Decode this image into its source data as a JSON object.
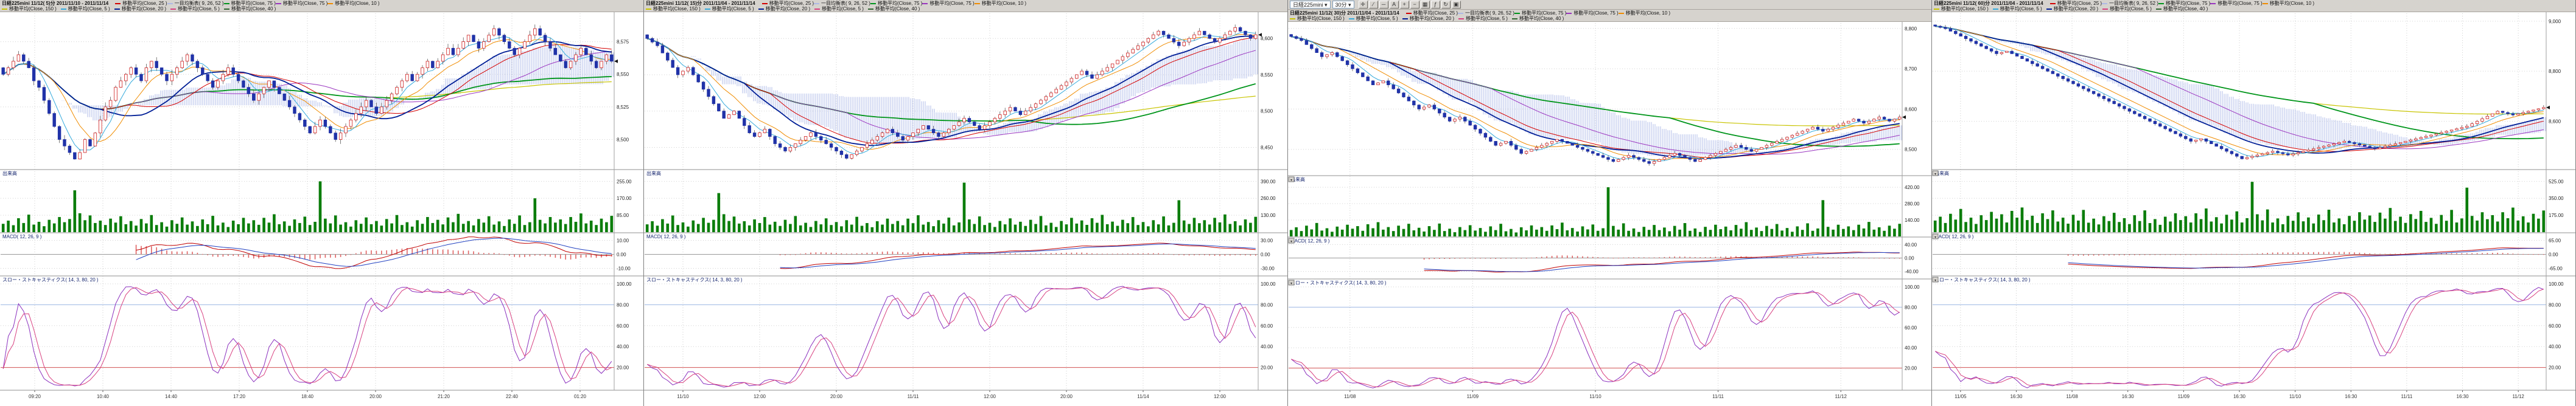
{
  "panels": [
    {
      "title": "日経225mini 11/12(  5)分  2011/11/10 - 2011/11/14"
    },
    {
      "title": "日経225mini 11/12( 15)分  2011/11/04 - 2011/11/14"
    },
    {
      "title": "日経225mini 11/12( 30)分  2011/11/04 - 2011/11/14"
    },
    {
      "title": "日経225mini 11/12( 60)分  2011/11/04 - 2011/11/14"
    }
  ],
  "legend": {
    "row1": [
      {
        "label": "移動平均(Close, 25 )",
        "color": "#d40000"
      },
      {
        "label": "一目均衡表( 9, 26, 52 )",
        "color": "#aeb9e6"
      },
      {
        "label": "移動平均(Close, 75 )",
        "color": "#00951b"
      },
      {
        "label": "移動平均(Close, 75 )",
        "color": "#9a35c0"
      },
      {
        "label": "移動平均(Close, 10 )",
        "color": "#f08c00"
      }
    ],
    "row2": [
      {
        "label": "移動平均(Close, 150 )",
        "color": "#c8c400"
      },
      {
        "label": "移動平均(Close, 5 )",
        "color": "#35aadc"
      },
      {
        "label": "移動平均(Close, 20 )",
        "color": "#001e96"
      },
      {
        "label": "移動平均(Close, 5 )",
        "color": "#d84080"
      },
      {
        "label": "移動平均(Close, 40 )",
        "color": "#336633"
      }
    ]
  },
  "sections": {
    "volume": "出来高",
    "macd": "MACD( 12, 26, 9 )",
    "stoch": "スロー・ストキャスティクス( 14, 3, 80, 20 )"
  },
  "toolbar": {
    "symbol": "日経225mini ▾",
    "timeframe": "30分 ▾",
    "buttons": [
      {
        "name": "crosshair-tool-button",
        "glyph": "✛"
      },
      {
        "name": "trendline-tool-button",
        "glyph": "∕"
      },
      {
        "name": "horizontal-line-tool-button",
        "glyph": "─"
      },
      {
        "name": "text-annotation-button",
        "glyph": "A"
      },
      {
        "name": "zoom-in-button",
        "glyph": "+"
      },
      {
        "name": "zoom-out-button",
        "glyph": "−"
      },
      {
        "name": "grid-toggle-button",
        "glyph": "▦"
      },
      {
        "name": "indicator-settings-button",
        "glyph": "ƒ"
      },
      {
        "name": "refresh-button",
        "glyph": "↻"
      },
      {
        "name": "save-layout-button",
        "glyph": "▣"
      }
    ]
  },
  "chart_data": [
    {
      "type": "candlestick",
      "name": "nikkei225mini-5min",
      "title": "日経225mini 11/12(  5)分  2011/11/10 - 2011/11/14",
      "timeframe": "5分",
      "date_range": "2011/11/10 - 2011/11/14",
      "ylim": [
        8470,
        8600
      ],
      "xlabels": [
        "09:20",
        "10:40",
        "14:40",
        "17:20",
        "18:40",
        "20:00",
        "21:20",
        "22:40",
        "01:20"
      ],
      "indicators": {
        "moving_averages": [
          5,
          10,
          20,
          25,
          40,
          75,
          150
        ],
        "ichimoku": [
          9,
          26,
          52
        ],
        "macd": [
          12,
          26,
          9
        ],
        "slow_stochastics": [
          14,
          3
        ]
      },
      "section_buttons": false,
      "closes": [
        8550,
        8555,
        8560,
        8565,
        8560,
        8555,
        8545,
        8540,
        8530,
        8520,
        8510,
        8500,
        8495,
        8490,
        8485,
        8490,
        8500,
        8495,
        8505,
        8515,
        8525,
        8530,
        8540,
        8545,
        8550,
        8555,
        8550,
        8545,
        8555,
        8560,
        8555,
        8550,
        8545,
        8550,
        8555,
        8560,
        8565,
        8560,
        8555,
        8550,
        8545,
        8540,
        8545,
        8550,
        8555,
        8550,
        8545,
        8540,
        8535,
        8530,
        8535,
        8540,
        8545,
        8540,
        8535,
        8530,
        8525,
        8520,
        8515,
        8510,
        8505,
        8510,
        8515,
        8510,
        8505,
        8500,
        8505,
        8510,
        8515,
        8520,
        8525,
        8530,
        8525,
        8520,
        8525,
        8530,
        8535,
        8540,
        8545,
        8550,
        8545,
        8550,
        8555,
        8560,
        8555,
        8560,
        8565,
        8570,
        8565,
        8570,
        8575,
        8580,
        8575,
        8570,
        8575,
        8580,
        8585,
        8580,
        8575,
        8570,
        8565,
        8570,
        8575,
        8580,
        8585,
        8580,
        8575,
        8570,
        8565,
        8560,
        8555,
        8560,
        8565,
        8570,
        8565,
        8560,
        8555,
        8560,
        8565,
        8560
      ],
      "volumes": [
        42,
        58,
        35,
        70,
        46,
        88,
        38,
        52,
        30,
        62,
        44,
        76,
        50,
        66,
        210,
        95,
        60,
        84,
        46,
        58,
        36,
        68,
        48,
        80,
        40,
        56,
        33,
        66,
        44,
        86,
        36,
        50,
        28,
        60,
        42,
        74,
        38,
        54,
        31,
        64,
        40,
        82,
        34,
        48,
        26,
        58,
        40,
        72,
        44,
        60,
        37,
        72,
        48,
        90,
        40,
        54,
        32,
        64,
        46,
        78,
        36,
        52,
        255,
        68,
        44,
        84,
        38,
        50,
        28,
        60,
        42,
        74,
        40,
        56,
        33,
        66,
        44,
        86,
        36,
        50,
        28,
        60,
        42,
        76,
        46,
        62,
        39,
        74,
        50,
        92,
        42,
        56,
        34,
        66,
        48,
        80,
        38,
        54,
        31,
        64,
        42,
        84,
        36,
        50,
        170,
        62,
        44,
        76,
        48,
        64,
        41,
        76,
        52,
        94,
        44,
        58,
        36,
        68,
        50,
        82
      ]
    },
    {
      "type": "candlestick",
      "name": "nikkei225mini-15min",
      "title": "日経225mini 11/12( 15)分  2011/11/04 - 2011/11/14",
      "timeframe": "15分",
      "date_range": "2011/11/04 - 2011/11/14",
      "ylim": [
        8425,
        8630
      ],
      "xlabels": [
        "11/10",
        "12:00",
        "20:00",
        "11/11",
        "12:00",
        "20:00",
        "11/14",
        "12:00"
      ],
      "indicators": {
        "moving_averages": [
          5,
          10,
          20,
          25,
          40,
          75,
          150
        ],
        "ichimoku": [
          9,
          26,
          52
        ],
        "macd": [
          12,
          26,
          9
        ],
        "slow_stochastics": [
          14,
          3
        ]
      },
      "section_buttons": false,
      "closes": [
        8600,
        8595,
        8590,
        8580,
        8570,
        8560,
        8550,
        8555,
        8560,
        8550,
        8540,
        8530,
        8520,
        8510,
        8500,
        8490,
        8495,
        8500,
        8490,
        8480,
        8470,
        8465,
        8470,
        8475,
        8465,
        8455,
        8450,
        8445,
        8450,
        8455,
        8460,
        8465,
        8470,
        8465,
        8460,
        8455,
        8450,
        8445,
        8440,
        8435,
        8440,
        8445,
        8450,
        8455,
        8460,
        8465,
        8470,
        8475,
        8470,
        8465,
        8460,
        8465,
        8470,
        8475,
        8480,
        8475,
        8470,
        8465,
        8470,
        8475,
        8480,
        8485,
        8490,
        8485,
        8480,
        8475,
        8480,
        8485,
        8490,
        8495,
        8500,
        8505,
        8500,
        8495,
        8500,
        8505,
        8510,
        8515,
        8520,
        8525,
        8530,
        8535,
        8540,
        8545,
        8550,
        8555,
        8550,
        8545,
        8550,
        8555,
        8560,
        8565,
        8570,
        8575,
        8580,
        8585,
        8590,
        8595,
        8600,
        8605,
        8610,
        8605,
        8600,
        8595,
        8590,
        8595,
        8600,
        8605,
        8610,
        8605,
        8600,
        8595,
        8600,
        8605,
        8610,
        8615,
        8610,
        8605,
        8600,
        8605
      ],
      "volumes": [
        60,
        84,
        50,
        100,
        66,
        128,
        55,
        75,
        43,
        90,
        63,
        110,
        72,
        95,
        300,
        138,
        86,
        120,
        66,
        84,
        52,
        98,
        70,
        116,
        58,
        80,
        48,
        95,
        63,
        124,
        52,
        72,
        40,
        86,
        60,
        106,
        55,
        78,
        45,
        92,
        58,
        118,
        49,
        70,
        38,
        84,
        58,
        104,
        63,
        86,
        53,
        104,
        69,
        130,
        58,
        78,
        46,
        92,
        66,
        112,
        52,
        75,
        380,
        98,
        63,
        121,
        55,
        72,
        40,
        86,
        60,
        106,
        58,
        80,
        48,
        95,
        63,
        124,
        52,
        72,
        40,
        86,
        60,
        110,
        66,
        90,
        56,
        107,
        72,
        133,
        61,
        81,
        49,
        95,
        69,
        116,
        55,
        78,
        45,
        92,
        60,
        121,
        52,
        72,
        245,
        90,
        63,
        110,
        69,
        92,
        59,
        110,
        75,
        136,
        63,
        84,
        52,
        98,
        72,
        118
      ]
    },
    {
      "type": "candlestick",
      "name": "nikkei225mini-30min",
      "title": "日経225mini 11/12( 30)分  2011/11/04 - 2011/11/14",
      "timeframe": "30分",
      "date_range": "2011/11/04 - 2011/11/14",
      "ylim": [
        8440,
        8800
      ],
      "xlabels": [
        "11/08",
        "11/09",
        "11/10",
        "11/11",
        "11/12"
      ],
      "indicators": {
        "moving_averages": [
          5,
          10,
          20,
          25,
          40,
          75,
          150
        ],
        "ichimoku": [
          9,
          26,
          52
        ],
        "macd": [
          12,
          26,
          9
        ],
        "slow_stochastics": [
          14,
          3
        ]
      },
      "section_buttons": true,
      "closes": [
        8780,
        8775,
        8770,
        8760,
        8750,
        8740,
        8730,
        8735,
        8740,
        8730,
        8720,
        8710,
        8700,
        8690,
        8680,
        8670,
        8660,
        8665,
        8670,
        8660,
        8650,
        8640,
        8630,
        8620,
        8610,
        8600,
        8605,
        8610,
        8600,
        8590,
        8580,
        8570,
        8575,
        8580,
        8570,
        8560,
        8550,
        8540,
        8530,
        8520,
        8510,
        8515,
        8520,
        8510,
        8500,
        8490,
        8495,
        8500,
        8505,
        8510,
        8515,
        8520,
        8525,
        8520,
        8515,
        8510,
        8505,
        8500,
        8495,
        8490,
        8485,
        8480,
        8475,
        8470,
        8475,
        8480,
        8485,
        8480,
        8475,
        8470,
        8465,
        8470,
        8475,
        8480,
        8485,
        8490,
        8485,
        8480,
        8475,
        8470,
        8475,
        8480,
        8485,
        8490,
        8495,
        8500,
        8505,
        8510,
        8505,
        8500,
        8495,
        8500,
        8505,
        8510,
        8515,
        8520,
        8525,
        8530,
        8535,
        8540,
        8545,
        8550,
        8555,
        8550,
        8545,
        8550,
        8555,
        8560,
        8565,
        8570,
        8575,
        8570,
        8565,
        8570,
        8575,
        8580,
        8575,
        8570,
        8575,
        8580
      ],
      "volumes": [
        55,
        78,
        46,
        92,
        60,
        115,
        50,
        70,
        40,
        84,
        58,
        100,
        66,
        88,
        48,
        104,
        70,
        122,
        58,
        80,
        46,
        92,
        64,
        108,
        52,
        74,
        42,
        88,
        56,
        110,
        46,
        66,
        36,
        80,
        54,
        96,
        50,
        72,
        40,
        86,
        54,
        108,
        44,
        64,
        34,
        78,
        52,
        94,
        58,
        80,
        48,
        94,
        62,
        118,
        52,
        72,
        42,
        86,
        60,
        102,
        48,
        70,
        420,
        90,
        58,
        112,
        48,
        68,
        38,
        82,
        56,
        98,
        54,
        76,
        44,
        90,
        58,
        114,
        48,
        68,
        38,
        82,
        56,
        100,
        62,
        84,
        52,
        98,
        66,
        122,
        56,
        76,
        46,
        90,
        64,
        106,
        50,
        72,
        40,
        86,
        56,
        112,
        48,
        68,
        310,
        82,
        58,
        100,
        64,
        86,
        54,
        100,
        68,
        124,
        58,
        78,
        48,
        92,
        66,
        108
      ]
    },
    {
      "type": "candlestick",
      "name": "nikkei225mini-60min",
      "title": "日経225mini 11/12( 60)分  2011/11/04 - 2011/11/14",
      "timeframe": "60分",
      "date_range": "2011/11/04 - 2011/11/14",
      "ylim": [
        8400,
        9010
      ],
      "xlabels": [
        "11/05",
        "16:30",
        "11/08",
        "16:30",
        "11/09",
        "16:30",
        "11/10",
        "16:30",
        "11/11",
        "16:30",
        "11/12"
      ],
      "indicators": {
        "moving_averages": [
          5,
          10,
          20,
          25,
          40,
          75,
          150
        ],
        "ichimoku": [
          9,
          26,
          52
        ],
        "macd": [
          12,
          26,
          9
        ],
        "slow_stochastics": [
          14,
          3
        ]
      },
      "section_buttons": true,
      "closes": [
        8980,
        8975,
        8970,
        8960,
        8950,
        8940,
        8930,
        8920,
        8910,
        8900,
        8890,
        8880,
        8870,
        8875,
        8880,
        8870,
        8860,
        8850,
        8840,
        8830,
        8820,
        8810,
        8800,
        8790,
        8780,
        8770,
        8760,
        8750,
        8740,
        8730,
        8720,
        8710,
        8700,
        8690,
        8680,
        8670,
        8660,
        8650,
        8640,
        8630,
        8620,
        8610,
        8600,
        8590,
        8580,
        8570,
        8560,
        8550,
        8540,
        8530,
        8520,
        8525,
        8530,
        8520,
        8510,
        8500,
        8490,
        8480,
        8470,
        8460,
        8450,
        8455,
        8460,
        8465,
        8470,
        8475,
        8480,
        8475,
        8470,
        8465,
        8470,
        8475,
        8480,
        8485,
        8490,
        8495,
        8500,
        8505,
        8510,
        8515,
        8520,
        8515,
        8510,
        8505,
        8500,
        8495,
        8490,
        8495,
        8500,
        8505,
        8510,
        8515,
        8520,
        8525,
        8530,
        8535,
        8540,
        8545,
        8550,
        8555,
        8560,
        8565,
        8570,
        8575,
        8580,
        8590,
        8600,
        8610,
        8620,
        8630,
        8640,
        8635,
        8630,
        8625,
        8630,
        8635,
        8640,
        8645,
        8650,
        8655
      ],
      "volumes": [
        120,
        160,
        95,
        190,
        130,
        240,
        105,
        150,
        85,
        175,
        125,
        210,
        140,
        185,
        100,
        220,
        150,
        255,
        125,
        170,
        95,
        195,
        135,
        225,
        110,
        150,
        88,
        180,
        120,
        230,
        98,
        140,
        80,
        165,
        115,
        200,
        105,
        145,
        84,
        175,
        115,
        225,
        94,
        135,
        76,
        160,
        110,
        195,
        125,
        165,
        100,
        195,
        135,
        245,
        110,
        155,
        90,
        180,
        130,
        215,
        100,
        145,
        520,
        185,
        122,
        235,
        100,
        142,
        82,
        168,
        118,
        205,
        112,
        152,
        90,
        182,
        124,
        232,
        100,
        142,
        82,
        168,
        118,
        206,
        130,
        172,
        106,
        202,
        140,
        250,
        116,
        160,
        96,
        186,
        136,
        220,
        106,
        148,
        86,
        178,
        118,
        230,
        100,
        142,
        460,
        168,
        120,
        206,
        134,
        176,
        110,
        206,
        144,
        254,
        120,
        164,
        100,
        190,
        140,
        224
      ]
    }
  ]
}
